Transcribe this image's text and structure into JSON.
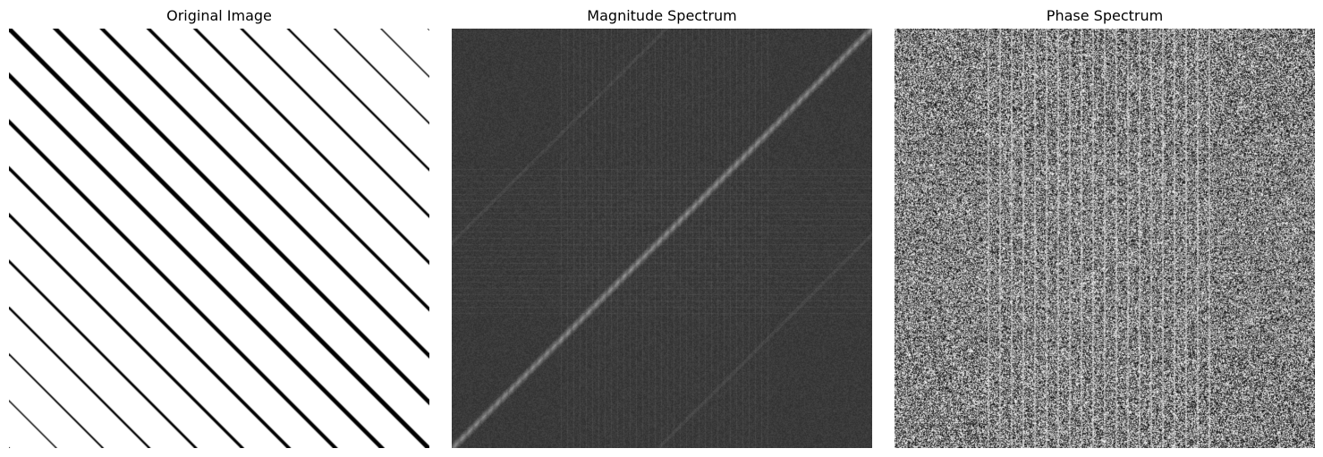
{
  "panels": [
    {
      "title": "Original Image"
    },
    {
      "title": "Magnitude Spectrum"
    },
    {
      "title": "Phase Spectrum"
    }
  ]
}
